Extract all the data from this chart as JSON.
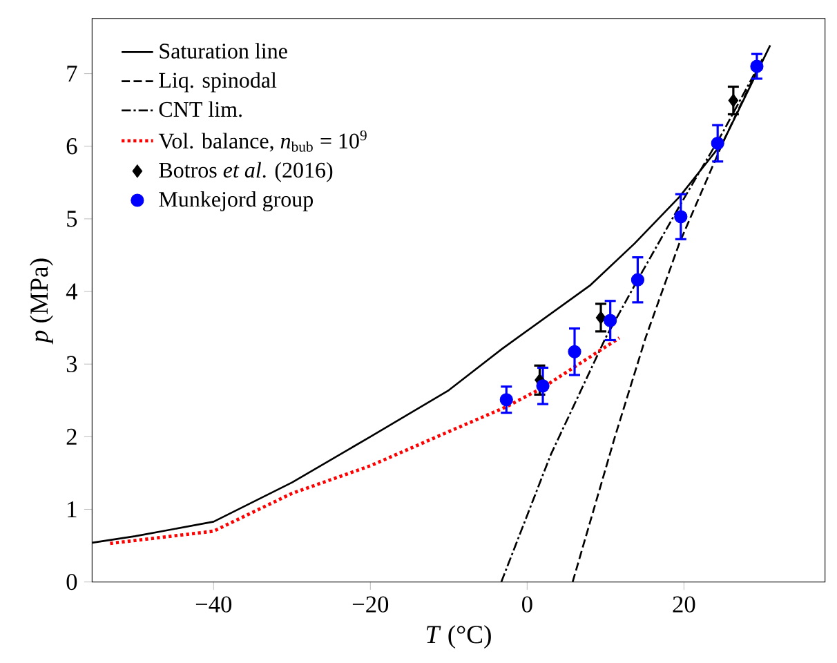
{
  "chart_data": {
    "type": "line",
    "xlabel": "*T* (°C)",
    "ylabel": "*p* (MPa)",
    "xlim": [
      -55.5,
      38
    ],
    "ylim": [
      0,
      7.76
    ],
    "xticks": [
      {
        "value": -40,
        "label": "−40"
      },
      {
        "value": -20,
        "label": "−20"
      },
      0,
      20
    ],
    "yticks": [
      0,
      1,
      2,
      3,
      4,
      5,
      6,
      7
    ],
    "grid": false,
    "legend": "top left",
    "series": [
      {
        "name": "Saturation line",
        "color": "#000000",
        "line_style": "solid",
        "marker": "none",
        "x": [
          -55.5,
          -50,
          -40,
          -30,
          -20,
          -10,
          -3.2,
          8.1,
          13.7,
          19.4,
          25.0,
          31.0
        ],
        "values": [
          0.54,
          0.63,
          0.83,
          1.37,
          2.0,
          2.64,
          3.21,
          4.09,
          4.66,
          5.3,
          6.06,
          7.39
        ]
      },
      {
        "name": "Liq. spinodal",
        "color": "#000000",
        "line_style": "dashed",
        "marker": "none",
        "x": [
          5.8,
          11.2,
          15.1,
          19.4,
          25.0,
          30.0
        ],
        "values": [
          0,
          2.0,
          3.36,
          4.66,
          6.06,
          7.2
        ]
      },
      {
        "name": "CNT lim.",
        "color": "#000000",
        "line_style": "dashdot",
        "marker": "none",
        "x": [
          -3.3,
          3,
          10,
          14.1,
          19.4,
          25,
          29.5
        ],
        "values": [
          0,
          1.75,
          3.36,
          4.16,
          5.17,
          6.2,
          7.1
        ]
      },
      {
        "name": "Vol. balance, *n*$_{bub}$ = 10$^{9}$",
        "color": "#ff0000",
        "line_style": "dotted",
        "marker": "none",
        "x": [
          -53.2,
          -40,
          -30,
          -20,
          -10,
          -2.7,
          1.9,
          11.75
        ],
        "values": [
          0.53,
          0.7,
          1.22,
          1.6,
          2.07,
          2.41,
          2.67,
          3.36
        ]
      },
      {
        "name": "Botros *et al*. (2016)",
        "type": "scatter",
        "color": "#000000",
        "marker": "diamond",
        "x": [
          1.6,
          9.4,
          26.3
        ],
        "values": [
          2.78,
          3.64,
          6.63
        ],
        "errors": [
          0.2,
          0.19,
          0.19
        ]
      },
      {
        "name": "Munkejord group",
        "type": "scatter",
        "color": "#0000ff",
        "marker": "circle",
        "x": [
          -2.65,
          2.0,
          6.05,
          10.6,
          14.1,
          19.6,
          24.3,
          29.3
        ],
        "values": [
          2.51,
          2.7,
          3.17,
          3.6,
          4.16,
          5.03,
          6.04,
          7.1
        ],
        "errors": [
          0.18,
          0.25,
          0.32,
          0.27,
          0.31,
          0.31,
          0.25,
          0.17
        ]
      }
    ]
  }
}
